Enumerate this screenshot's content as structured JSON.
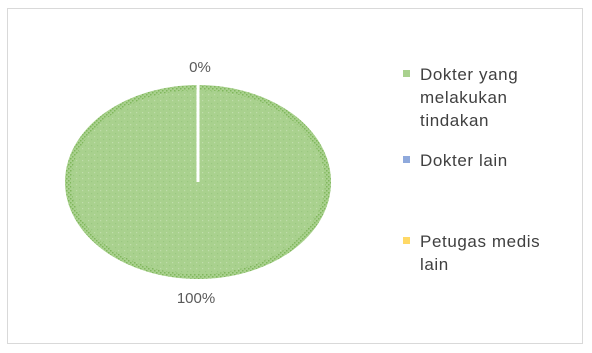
{
  "chart_data": {
    "type": "pie",
    "categories": [
      "Dokter yang melakukan tindakan",
      "Dokter lain",
      "Petugas medis lain"
    ],
    "values": [
      100,
      0,
      0
    ],
    "data_labels": [
      "100%",
      "0%",
      ""
    ],
    "colors": [
      "#a9d18e",
      "#8fa9dc",
      "#ffd966"
    ],
    "legend": {
      "placement": "right",
      "entries": [
        {
          "lines": [
            "Dokter yang",
            "melakukan",
            "tindakan"
          ],
          "color": "#a9d18e"
        },
        {
          "lines": [
            "Dokter lain"
          ],
          "color": "#8fa9dc"
        },
        {
          "lines": [
            "Petugas medis",
            "lain"
          ],
          "color": "#ffd966"
        }
      ]
    },
    "title": "",
    "xlabel": "",
    "ylabel": ""
  }
}
